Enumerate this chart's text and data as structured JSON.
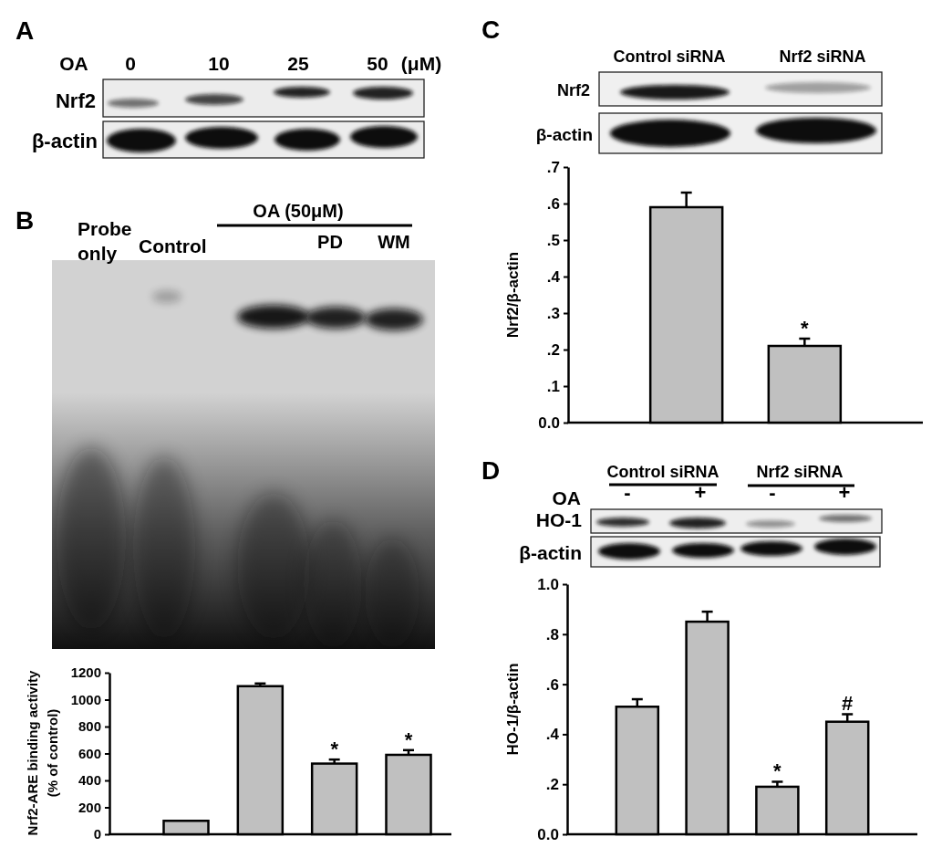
{
  "chart_data": [
    {
      "type": "other",
      "title": "A",
      "annotations": [
        "OA",
        "0",
        "10",
        "25",
        "50",
        "(μM)",
        "Nrf2",
        "β-actin"
      ]
    },
    {
      "type": "bar",
      "title": "B",
      "ylabel": "Nrf2-ARE binding activity (% of control)",
      "categories": [
        null,
        null,
        null,
        null
      ],
      "values": [
        100,
        1100,
        525,
        590
      ],
      "errors": [
        null,
        20,
        30,
        35
      ],
      "value_labels": [
        null,
        null,
        "*",
        "*"
      ],
      "color": "#c0c0c0",
      "ylim": [
        0,
        1200
      ],
      "yticks": [
        0,
        200,
        400,
        600,
        800,
        1000,
        1200
      ],
      "annotations": [
        "OA (50μM)",
        "Probe only",
        "Control",
        "PD",
        "WM"
      ]
    },
    {
      "type": "bar",
      "title": "C",
      "ylabel": "Nrf2/β-actin",
      "categories": [
        null,
        null
      ],
      "values": [
        0.59,
        0.21
      ],
      "errors": [
        0.04,
        0.02
      ],
      "value_labels": [
        null,
        "*"
      ],
      "color": "#c0c0c0",
      "ylim": [
        0,
        0.7
      ],
      "yticks": [
        {
          "value": 0,
          "label": "0.0"
        },
        {
          "value": 0.1,
          "label": ".1"
        },
        {
          "value": 0.2,
          "label": ".2"
        },
        {
          "value": 0.3,
          "label": ".3"
        },
        {
          "value": 0.4,
          "label": ".4"
        },
        {
          "value": 0.5,
          "label": ".5"
        },
        {
          "value": 0.6,
          "label": ".6"
        },
        {
          "value": 0.7,
          "label": ".7"
        }
      ],
      "annotations": [
        "Control siRNA",
        "Nrf2 siRNA",
        "Nrf2",
        "β-actin"
      ]
    },
    {
      "type": "bar",
      "title": "D",
      "ylabel": "HO-1/β-actin",
      "categories": [
        null,
        null,
        null,
        null
      ],
      "values": [
        0.51,
        0.85,
        0.19,
        0.45
      ],
      "errors": [
        0.03,
        0.04,
        0.02,
        0.03
      ],
      "value_labels": [
        null,
        null,
        "*",
        "#"
      ],
      "color": "#c0c0c0",
      "ylim": [
        0,
        1
      ],
      "yticks": [
        {
          "value": 0,
          "label": "0.0"
        },
        {
          "value": 0.2,
          "label": ".2"
        },
        {
          "value": 0.4,
          "label": ".4"
        },
        {
          "value": 0.6,
          "label": ".6"
        },
        {
          "value": 0.8,
          "label": ".8"
        },
        {
          "value": 1,
          "label": "1.0"
        }
      ],
      "annotations": [
        "Control siRNA",
        "Nrf2 siRNA",
        "OA",
        "-",
        "+",
        "-",
        "+",
        "HO-1",
        "β-actin"
      ]
    }
  ]
}
